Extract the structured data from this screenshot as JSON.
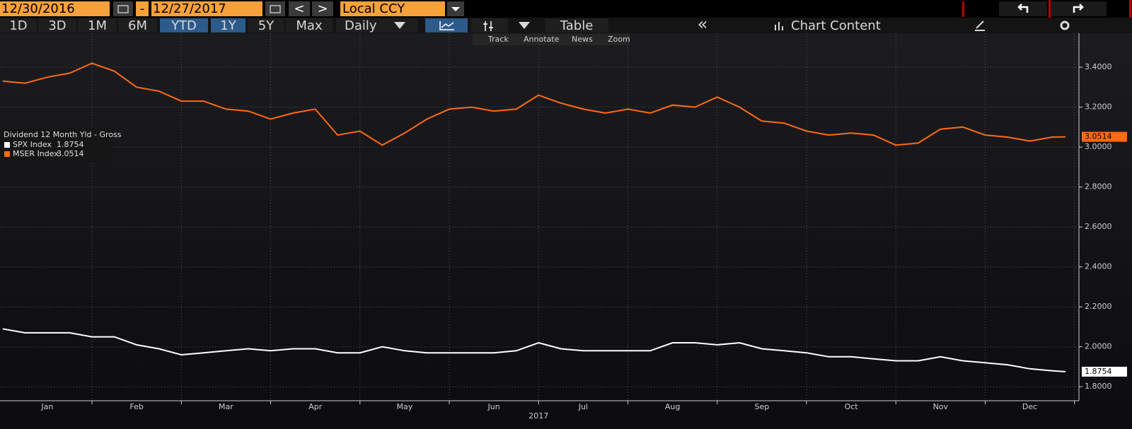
{
  "toolbar": {
    "start_date": "12/30/2016",
    "separator": "-",
    "end_date": "12/27/2017",
    "prev": "<",
    "next": ">",
    "currency": "Local CCY",
    "ranges": [
      "1D",
      "3D",
      "1M",
      "6M",
      "YTD",
      "1Y",
      "5Y",
      "Max"
    ],
    "frequency": "Daily",
    "table": "Table",
    "back": "«",
    "chart_content": "Chart Content"
  },
  "chart_tools": [
    "Track",
    "Annotate",
    "News",
    "Zoom"
  ],
  "chart_data": {
    "type": "line",
    "title": "Dividend 12 Month Yld - Gross",
    "x_label": "2017",
    "x": [
      0,
      0.25,
      0.5,
      0.75,
      1,
      1.25,
      1.5,
      1.75,
      2,
      2.25,
      2.5,
      2.75,
      3,
      3.25,
      3.5,
      3.75,
      4,
      4.25,
      4.5,
      4.75,
      5,
      5.25,
      5.5,
      5.75,
      6,
      6.25,
      6.5,
      6.75,
      7,
      7.25,
      7.5,
      7.75,
      8,
      8.25,
      8.5,
      8.75,
      9,
      9.25,
      9.5,
      9.75,
      10,
      10.25,
      10.5,
      10.75,
      11,
      11.25,
      11.5,
      11.75,
      11.9
    ],
    "xlim": [
      -0.03,
      12.05
    ],
    "xticks": [
      {
        "value": 0.5,
        "label": "Jan"
      },
      {
        "value": 1.5,
        "label": "Feb"
      },
      {
        "value": 2.5,
        "label": "Mar"
      },
      {
        "value": 3.5,
        "label": "Apr"
      },
      {
        "value": 4.5,
        "label": "May"
      },
      {
        "value": 5.5,
        "label": "Jun"
      },
      {
        "value": 6.5,
        "label": "Jul"
      },
      {
        "value": 7.5,
        "label": "Aug"
      },
      {
        "value": 8.5,
        "label": "Sep"
      },
      {
        "value": 9.5,
        "label": "Oct"
      },
      {
        "value": 10.5,
        "label": "Nov"
      },
      {
        "value": 11.5,
        "label": "Dec"
      }
    ],
    "ylim": [
      1.73,
      3.57
    ],
    "yticks": [
      {
        "value": 1.8,
        "label": "1.8000"
      },
      {
        "value": 2.0,
        "label": "2.0000"
      },
      {
        "value": 2.2,
        "label": "2.2000"
      },
      {
        "value": 2.4,
        "label": "2.4000"
      },
      {
        "value": 2.6,
        "label": "2.6000"
      },
      {
        "value": 2.8,
        "label": "2.8000"
      },
      {
        "value": 3.0,
        "label": "3.0000"
      },
      {
        "value": 3.2,
        "label": "3.2000"
      },
      {
        "value": 3.4,
        "label": "3.4000"
      }
    ],
    "grid": true,
    "series": [
      {
        "name": "SPX Index",
        "color": "#ffffff",
        "values": [
          2.09,
          2.07,
          2.07,
          2.07,
          2.05,
          2.05,
          2.01,
          1.99,
          1.96,
          1.97,
          1.98,
          1.99,
          1.98,
          1.99,
          1.99,
          1.97,
          1.97,
          2.0,
          1.98,
          1.97,
          1.97,
          1.97,
          1.97,
          1.98,
          2.02,
          1.99,
          1.98,
          1.98,
          1.98,
          1.98,
          2.02,
          2.02,
          2.01,
          2.02,
          1.99,
          1.98,
          1.97,
          1.95,
          1.95,
          1.94,
          1.93,
          1.93,
          1.95,
          1.93,
          1.92,
          1.91,
          1.89,
          1.88,
          1.8754
        ]
      },
      {
        "name": "MSER Index",
        "color": "#ff6a13",
        "values": [
          3.33,
          3.32,
          3.35,
          3.37,
          3.42,
          3.38,
          3.3,
          3.28,
          3.23,
          3.23,
          3.19,
          3.18,
          3.14,
          3.17,
          3.19,
          3.06,
          3.08,
          3.01,
          3.07,
          3.14,
          3.19,
          3.2,
          3.18,
          3.19,
          3.26,
          3.22,
          3.19,
          3.17,
          3.19,
          3.17,
          3.21,
          3.2,
          3.25,
          3.2,
          3.13,
          3.12,
          3.08,
          3.06,
          3.07,
          3.06,
          3.01,
          3.02,
          3.09,
          3.1,
          3.06,
          3.05,
          3.03,
          3.05,
          3.0514
        ]
      }
    ]
  }
}
